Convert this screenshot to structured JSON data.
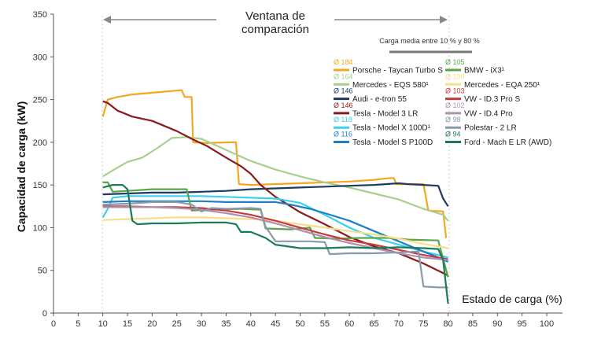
{
  "chart_data": {
    "type": "line",
    "xlabel": "Estado de carga (%)",
    "ylabel": "Capacidad de carga (kW)",
    "xlim": [
      0,
      100
    ],
    "ylim": [
      0,
      350
    ],
    "x_ticks": [
      0,
      5,
      10,
      15,
      20,
      25,
      30,
      35,
      40,
      45,
      50,
      55,
      60,
      65,
      70,
      75,
      80,
      85,
      90,
      95,
      100
    ],
    "y_ticks": [
      0,
      50,
      100,
      150,
      200,
      250,
      300,
      350
    ],
    "grid": false,
    "legend_position": "top-right",
    "window": {
      "label_line1": "Ventana de",
      "label_line2": "comparación",
      "from": 10,
      "to": 80
    },
    "avg_note": "Carga media entre 10 % y 80 %",
    "series": [
      {
        "name": "Porsche - Taycan Turbo S",
        "avg": "Ø 184",
        "color": "#f5a623",
        "points": [
          [
            10,
            230
          ],
          [
            11,
            250
          ],
          [
            13,
            253
          ],
          [
            16,
            256
          ],
          [
            20,
            258
          ],
          [
            24,
            260
          ],
          [
            26,
            261
          ],
          [
            26.6,
            253
          ],
          [
            28,
            253
          ],
          [
            28.3,
            200
          ],
          [
            31,
            199
          ],
          [
            36,
            200
          ],
          [
            37,
            200
          ],
          [
            37.6,
            151
          ],
          [
            40,
            150
          ],
          [
            50,
            152
          ],
          [
            60,
            154
          ],
          [
            65,
            156
          ],
          [
            68,
            158
          ],
          [
            69,
            158
          ],
          [
            69.5,
            151
          ],
          [
            72,
            151
          ],
          [
            75,
            151
          ],
          [
            76,
            120
          ],
          [
            79,
            119
          ],
          [
            79.6,
            88
          ]
        ]
      },
      {
        "name": "Mercedes - EQS 580¹",
        "avg": "Ø 164",
        "color": "#a8d08d",
        "points": [
          [
            10,
            160
          ],
          [
            12,
            167
          ],
          [
            15,
            177
          ],
          [
            18,
            182
          ],
          [
            21,
            193
          ],
          [
            24,
            205
          ],
          [
            27,
            206
          ],
          [
            30,
            204
          ],
          [
            35,
            191
          ],
          [
            40,
            178
          ],
          [
            45,
            168
          ],
          [
            50,
            160
          ],
          [
            55,
            153
          ],
          [
            60,
            147
          ],
          [
            65,
            140
          ],
          [
            70,
            133
          ],
          [
            75,
            122
          ],
          [
            79,
            115
          ],
          [
            80,
            108
          ]
        ]
      },
      {
        "name": "Audi - e-tron 55",
        "avg": "Ø 146",
        "color": "#1f3a5f",
        "points": [
          [
            10,
            139
          ],
          [
            15,
            140
          ],
          [
            20,
            141
          ],
          [
            25,
            141
          ],
          [
            30,
            142
          ],
          [
            35,
            143
          ],
          [
            40,
            145
          ],
          [
            45,
            146
          ],
          [
            50,
            147
          ],
          [
            55,
            148
          ],
          [
            60,
            149
          ],
          [
            65,
            150
          ],
          [
            70,
            152
          ],
          [
            72,
            151
          ],
          [
            75,
            150
          ],
          [
            78,
            149
          ],
          [
            79,
            134
          ],
          [
            80,
            125
          ]
        ]
      },
      {
        "name": "Tesla - Model 3 LR",
        "avg": "Ø 146",
        "color": "#8b1a1a",
        "points": [
          [
            10,
            248
          ],
          [
            11,
            246
          ],
          [
            13,
            237
          ],
          [
            16,
            230
          ],
          [
            20,
            225
          ],
          [
            25,
            213
          ],
          [
            28,
            204
          ],
          [
            31,
            196
          ],
          [
            35,
            182
          ],
          [
            38,
            172
          ],
          [
            40,
            163
          ],
          [
            42,
            150
          ],
          [
            45,
            136
          ],
          [
            50,
            118
          ],
          [
            55,
            104
          ],
          [
            60,
            89
          ],
          [
            65,
            78
          ],
          [
            70,
            70
          ],
          [
            75,
            58
          ],
          [
            80,
            44
          ]
        ]
      },
      {
        "name": "Tesla - Model X 100D¹",
        "avg": "Ø 118",
        "color": "#3cd0f0",
        "points": [
          [
            10,
            112
          ],
          [
            11,
            122
          ],
          [
            12,
            135
          ],
          [
            15,
            137
          ],
          [
            20,
            137
          ],
          [
            25,
            137
          ],
          [
            30,
            137
          ],
          [
            35,
            136
          ],
          [
            40,
            135
          ],
          [
            45,
            134
          ],
          [
            50,
            129
          ],
          [
            55,
            115
          ],
          [
            60,
            100
          ],
          [
            65,
            88
          ],
          [
            70,
            80
          ],
          [
            75,
            72
          ],
          [
            78,
            68
          ],
          [
            80,
            65
          ]
        ]
      },
      {
        "name": "Tesla - Model S P100D",
        "avg": "Ø 116",
        "color": "#1f7fc4",
        "points": [
          [
            10,
            130
          ],
          [
            15,
            131
          ],
          [
            20,
            131
          ],
          [
            25,
            131
          ],
          [
            30,
            131
          ],
          [
            35,
            130
          ],
          [
            40,
            130
          ],
          [
            45,
            130
          ],
          [
            48,
            127
          ],
          [
            52,
            122
          ],
          [
            55,
            117
          ],
          [
            60,
            108
          ],
          [
            65,
            96
          ],
          [
            70,
            84
          ],
          [
            75,
            72
          ],
          [
            78,
            65
          ],
          [
            80,
            60
          ]
        ]
      },
      {
        "name": "BMW - iX3¹",
        "avg": "Ø 105",
        "color": "#58a64a",
        "points": [
          [
            10,
            153
          ],
          [
            11,
            153
          ],
          [
            12,
            142
          ],
          [
            15,
            143
          ],
          [
            20,
            145
          ],
          [
            25,
            145
          ],
          [
            27,
            145
          ],
          [
            28,
            120
          ],
          [
            32,
            121
          ],
          [
            38,
            122
          ],
          [
            42,
            121
          ],
          [
            43,
            99
          ],
          [
            48,
            98
          ],
          [
            52,
            100
          ],
          [
            53,
            88
          ],
          [
            58,
            87
          ],
          [
            62,
            88
          ],
          [
            68,
            88
          ],
          [
            72,
            86
          ],
          [
            78,
            85
          ],
          [
            80,
            42
          ]
        ]
      },
      {
        "name": "Mercedes - EQA 250¹",
        "avg": "Ø 100",
        "color": "#f7df8a",
        "points": [
          [
            10,
            109
          ],
          [
            15,
            110
          ],
          [
            20,
            111
          ],
          [
            25,
            112
          ],
          [
            30,
            112
          ],
          [
            35,
            111
          ],
          [
            40,
            110
          ],
          [
            45,
            108
          ],
          [
            50,
            104
          ],
          [
            55,
            100
          ],
          [
            60,
            96
          ],
          [
            65,
            92
          ],
          [
            70,
            87
          ],
          [
            75,
            81
          ],
          [
            80,
            76
          ]
        ]
      },
      {
        "name": "VW - ID.3 Pro S",
        "avg": "Ø 103",
        "color": "#c73a3a",
        "points": [
          [
            10,
            125
          ],
          [
            15,
            125
          ],
          [
            20,
            124
          ],
          [
            25,
            124
          ],
          [
            30,
            123
          ],
          [
            35,
            120
          ],
          [
            40,
            115
          ],
          [
            45,
            108
          ],
          [
            50,
            100
          ],
          [
            55,
            92
          ],
          [
            60,
            85
          ],
          [
            65,
            80
          ],
          [
            70,
            74
          ],
          [
            75,
            68
          ],
          [
            80,
            63
          ]
        ]
      },
      {
        "name": "VW - ID.4 Pro",
        "avg": "Ø 102",
        "color": "#b08fb0",
        "points": [
          [
            10,
            124
          ],
          [
            15,
            124
          ],
          [
            20,
            124
          ],
          [
            25,
            123
          ],
          [
            30,
            121
          ],
          [
            35,
            117
          ],
          [
            40,
            112
          ],
          [
            45,
            105
          ],
          [
            50,
            97
          ],
          [
            55,
            89
          ],
          [
            60,
            82
          ],
          [
            65,
            76
          ],
          [
            70,
            70
          ],
          [
            75,
            65
          ],
          [
            80,
            62
          ]
        ]
      },
      {
        "name": "Polestar - 2 LR",
        "avg": "Ø 98",
        "color": "#8a9aa8",
        "points": [
          [
            10,
            127
          ],
          [
            15,
            128
          ],
          [
            20,
            130
          ],
          [
            25,
            130
          ],
          [
            28,
            127
          ],
          [
            30,
            119
          ],
          [
            32,
            123
          ],
          [
            35,
            122
          ],
          [
            40,
            123
          ],
          [
            42,
            122
          ],
          [
            43,
            101
          ],
          [
            45,
            84
          ],
          [
            52,
            84
          ],
          [
            55,
            83
          ],
          [
            56,
            69
          ],
          [
            60,
            70
          ],
          [
            65,
            70
          ],
          [
            70,
            71
          ],
          [
            74,
            72
          ],
          [
            75,
            31
          ],
          [
            78,
            30
          ],
          [
            80,
            30
          ]
        ]
      },
      {
        "name": "Ford - Mach E LR (AWD)",
        "avg": "Ø 94",
        "color": "#1a7a5a",
        "points": [
          [
            10,
            147
          ],
          [
            12,
            150
          ],
          [
            14,
            150
          ],
          [
            15,
            145
          ],
          [
            16,
            108
          ],
          [
            17,
            104
          ],
          [
            20,
            105
          ],
          [
            25,
            105
          ],
          [
            30,
            106
          ],
          [
            35,
            106
          ],
          [
            37,
            104
          ],
          [
            38,
            95
          ],
          [
            40,
            95
          ],
          [
            43,
            88
          ],
          [
            45,
            80
          ],
          [
            50,
            76
          ],
          [
            55,
            76
          ],
          [
            60,
            77
          ],
          [
            65,
            76
          ],
          [
            70,
            77
          ],
          [
            75,
            76
          ],
          [
            78,
            75
          ],
          [
            79,
            62
          ],
          [
            80,
            11
          ]
        ]
      }
    ]
  }
}
